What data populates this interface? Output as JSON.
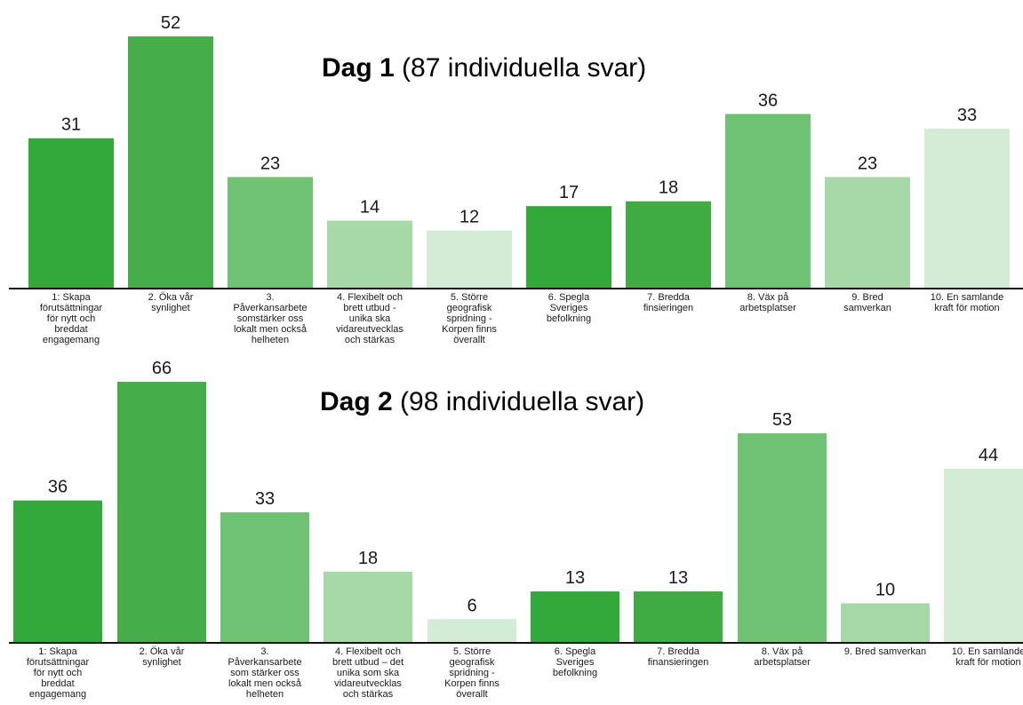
{
  "chart_data": [
    {
      "type": "bar",
      "title_bold": "Dag 1",
      "title_rest": "(87 individuella svar)",
      "categories": [
        "1: Skapa förutsättningar för nytt och breddat engagemang",
        "2. Öka vår synlighet",
        "3. Påverkansarbete somstärker oss lokalt men också helheten",
        "4. Flexibelt och brett utbud - unika ska vidareutvecklas och stärkas",
        "5. Större geografisk spridning - Korpen finns överallt",
        "6. Spegla Sveriges befolkning",
        "7. Bredda finsieringen",
        "8. Väx på arbetsplatser",
        "9. Bred samverkan",
        "10. En samlande kraft för motion"
      ],
      "values": [
        31,
        52,
        23,
        14,
        12,
        17,
        18,
        36,
        23,
        33
      ],
      "colors": [
        "#34a93b",
        "#45ae48",
        "#6fc173",
        "#a6d9a7",
        "#d4ecd5",
        "#34a93b",
        "#3fac43",
        "#6fc173",
        "#a6d9a7",
        "#d4ecd5"
      ],
      "ylim": [
        0,
        52
      ]
    },
    {
      "type": "bar",
      "title_bold": "Dag 2",
      "title_rest": "(98 individuella svar)",
      "categories": [
        "1: Skapa förutsättningar för nytt och breddat engagemang",
        "2. Öka vår synlighet",
        "3. Påverkansarbete som stärker oss lokalt men också helheten",
        "4. Flexibelt och brett utbud – det unika som ska vidareutvecklas och stärkas",
        "5. Större geografisk spridning - Korpen finns överallt",
        "6. Spegla Sveriges befolkning",
        "7. Bredda finansieringen",
        "8. Väx på arbetsplatser",
        "9. Bred samverkan",
        "10. En samlande kraft för motion"
      ],
      "values": [
        36,
        66,
        33,
        18,
        6,
        13,
        13,
        53,
        10,
        44
      ],
      "colors": [
        "#34a93b",
        "#45ae48",
        "#6fc173",
        "#a6d9a7",
        "#d4ecd5",
        "#34a93b",
        "#3fac43",
        "#6fc173",
        "#a6d9a7",
        "#d4ecd5"
      ],
      "ylim": [
        0,
        66
      ]
    }
  ]
}
